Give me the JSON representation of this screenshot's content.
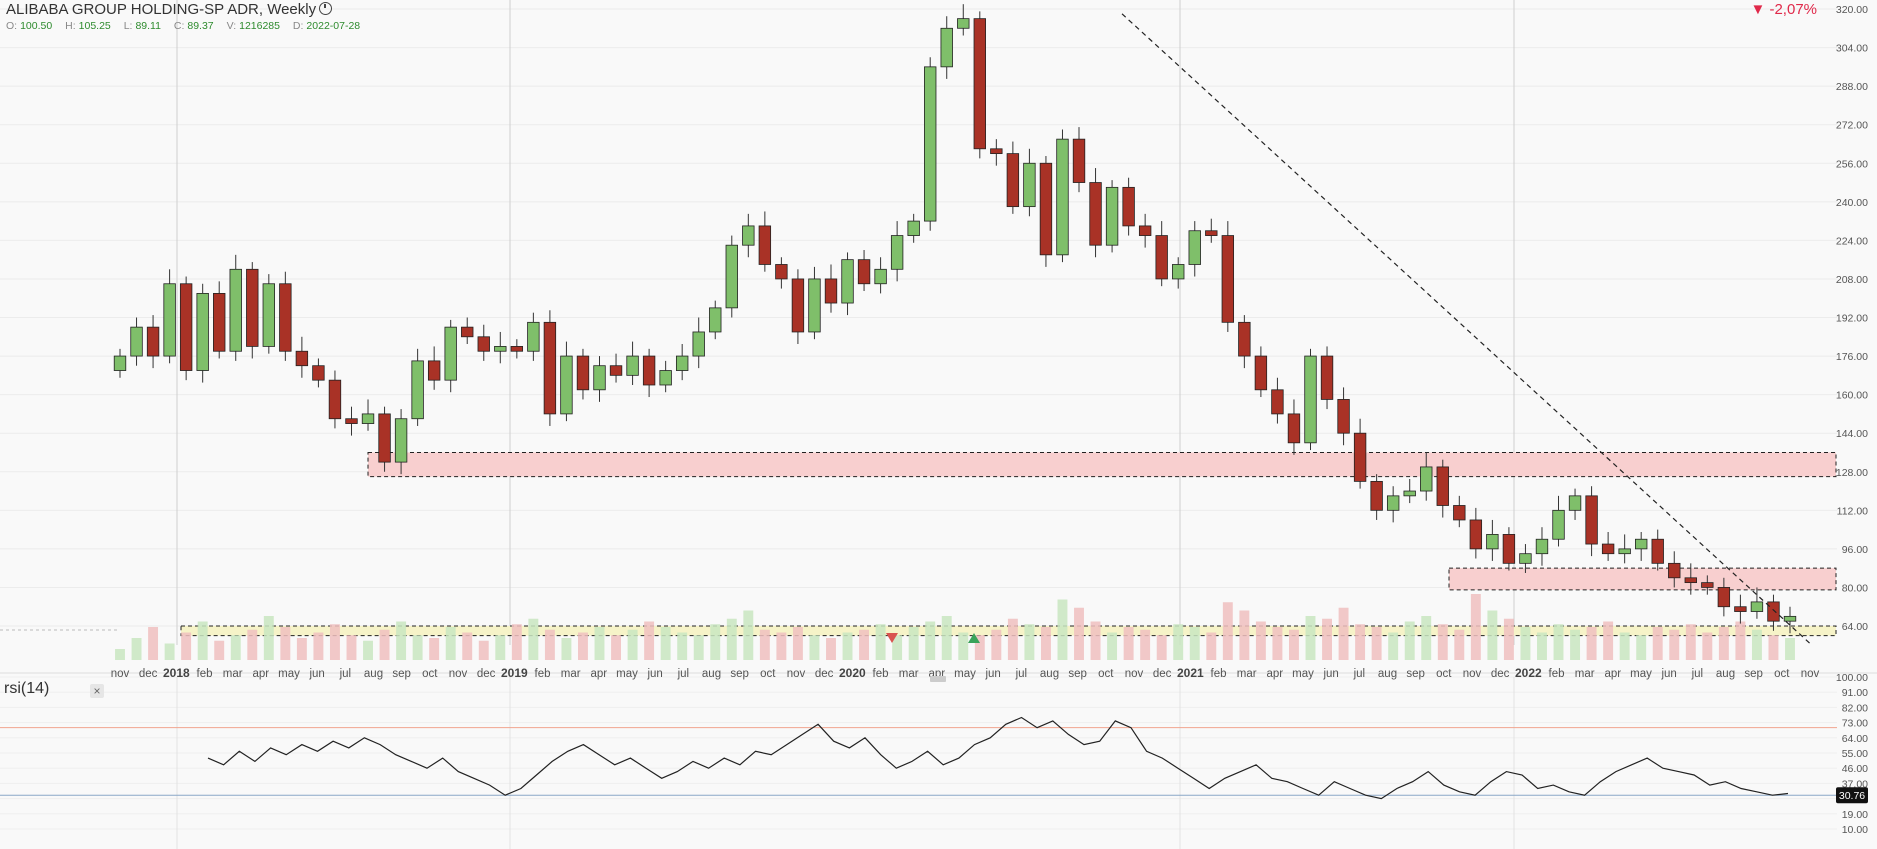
{
  "header": {
    "title": "ALIBABA GROUP HOLDING-SP ADR, Weekly",
    "change": "▼ -2,07%",
    "ohlc": [
      {
        "key": "O:",
        "value": "100.50"
      },
      {
        "key": "H:",
        "value": "105.25"
      },
      {
        "key": "L:",
        "value": "89.11"
      },
      {
        "key": "C:",
        "value": "89.37"
      },
      {
        "key": "V:",
        "value": "1216285"
      },
      {
        "key": "D:",
        "value": "2022-07-28"
      }
    ]
  },
  "rsi_panel": {
    "title": "rsi(14)",
    "close_label": "×",
    "current_value": "30.76"
  },
  "colors": {
    "up": "#7fbf6a",
    "down": "#a93226",
    "rsi_line": "#222222",
    "zone": "#f8cfcf",
    "zone_yellow": "#f6f3c8",
    "axis_text": "#555555",
    "change": "#e0294a"
  },
  "chart_data": [
    {
      "type": "candlestick",
      "ylim": [
        56,
        322
      ],
      "y_ticks": [
        "320.00",
        "304.00",
        "288.00",
        "272.00",
        "256.00",
        "240.00",
        "224.00",
        "208.00",
        "192.00",
        "176.00",
        "160.00",
        "144.00",
        "128.00",
        "112.00",
        "96.00",
        "80.00",
        "64.00"
      ],
      "x_ticks": [
        "nov",
        "dec",
        "2018",
        "feb",
        "mar",
        "apr",
        "may",
        "jun",
        "jul",
        "aug",
        "sep",
        "oct",
        "nov",
        "dec",
        "2019",
        "feb",
        "mar",
        "apr",
        "may",
        "jun",
        "jul",
        "aug",
        "sep",
        "oct",
        "nov",
        "dec",
        "2020",
        "feb",
        "mar",
        "apr",
        "may",
        "jun",
        "jul",
        "aug",
        "sep",
        "oct",
        "nov",
        "dec",
        "2021",
        "feb",
        "mar",
        "apr",
        "may",
        "jun",
        "jul",
        "aug",
        "sep",
        "oct",
        "nov",
        "dec",
        "2022",
        "feb",
        "mar",
        "apr",
        "may",
        "jun",
        "jul",
        "aug",
        "sep",
        "oct",
        "nov"
      ],
      "series": [
        {
          "name": "",
          "values": [
            176,
            188,
            176,
            206,
            170,
            202,
            178,
            212,
            180,
            206,
            178,
            172,
            166,
            150,
            148,
            152,
            132,
            150,
            174,
            166,
            188,
            184,
            178,
            180,
            178,
            190,
            152,
            176,
            162,
            172,
            168,
            176,
            164,
            170,
            176,
            186,
            196,
            222,
            230,
            214,
            208,
            186,
            208,
            198,
            216,
            206,
            212,
            226,
            232,
            296,
            312,
            316,
            262,
            260,
            238,
            256,
            218,
            266,
            248,
            222,
            246,
            230,
            226,
            208,
            214,
            228,
            226,
            190,
            176,
            162,
            152,
            140,
            176,
            158,
            144,
            124,
            112,
            118,
            120,
            130,
            114,
            108,
            96,
            102,
            90,
            94,
            100,
            112,
            118,
            98,
            94,
            96,
            100,
            90,
            84,
            82,
            80,
            72,
            70,
            74,
            66,
            68
          ]
        },
        {
          "name": "Volume",
          "values": [
            4,
            8,
            12,
            6,
            10,
            14,
            7,
            9,
            11,
            16,
            12,
            8,
            10,
            13,
            9,
            7,
            11,
            14,
            9,
            8,
            12,
            10,
            7,
            9,
            13,
            15,
            11,
            8,
            10,
            12,
            9,
            11,
            14,
            12,
            10,
            9,
            13,
            15,
            18,
            11,
            10,
            12,
            9,
            8,
            10,
            11,
            13,
            9,
            12,
            14,
            16,
            10,
            9,
            11,
            15,
            13,
            12,
            22,
            19,
            14,
            10,
            12,
            11,
            9,
            13,
            12,
            10,
            21,
            18,
            14,
            12,
            11,
            16,
            15,
            19,
            13,
            12,
            10,
            14,
            16,
            13,
            11,
            24,
            18,
            15,
            12,
            10,
            13,
            11,
            12,
            14,
            10,
            9,
            12,
            11,
            13,
            10,
            12,
            14,
            11,
            9,
            8
          ]
        }
      ],
      "annotations": [
        "trendline from 2020 high",
        "support zone ~131",
        "support zone ~83",
        "support zone ~63"
      ]
    },
    {
      "type": "line",
      "title": "rsi(14)",
      "ylim": [
        10,
        100
      ],
      "y_ticks": [
        "100.00",
        "91.00",
        "82.00",
        "73.00",
        "64.00",
        "55.00",
        "46.00",
        "37.00",
        "28.00",
        "19.00",
        "10.00"
      ],
      "reference_lines": [
        70,
        30
      ],
      "series": [
        {
          "name": "",
          "values": [
            52,
            48,
            56,
            50,
            58,
            54,
            60,
            56,
            62,
            58,
            64,
            60,
            54,
            50,
            46,
            52,
            44,
            40,
            36,
            30,
            34,
            42,
            50,
            56,
            60,
            54,
            48,
            52,
            46,
            40,
            44,
            50,
            46,
            52,
            48,
            56,
            54,
            60,
            66,
            72,
            62,
            58,
            64,
            54,
            46,
            50,
            56,
            48,
            52,
            60,
            64,
            72,
            76,
            70,
            74,
            66,
            60,
            62,
            74,
            70,
            56,
            52,
            46,
            40,
            34,
            40,
            44,
            48,
            40,
            38,
            34,
            30,
            38,
            34,
            30,
            28,
            34,
            38,
            44,
            36,
            32,
            30,
            38,
            44,
            42,
            34,
            36,
            32,
            30,
            38,
            44,
            48,
            52,
            46,
            44,
            42,
            36,
            38,
            34,
            32,
            30,
            31
          ]
        }
      ]
    }
  ]
}
